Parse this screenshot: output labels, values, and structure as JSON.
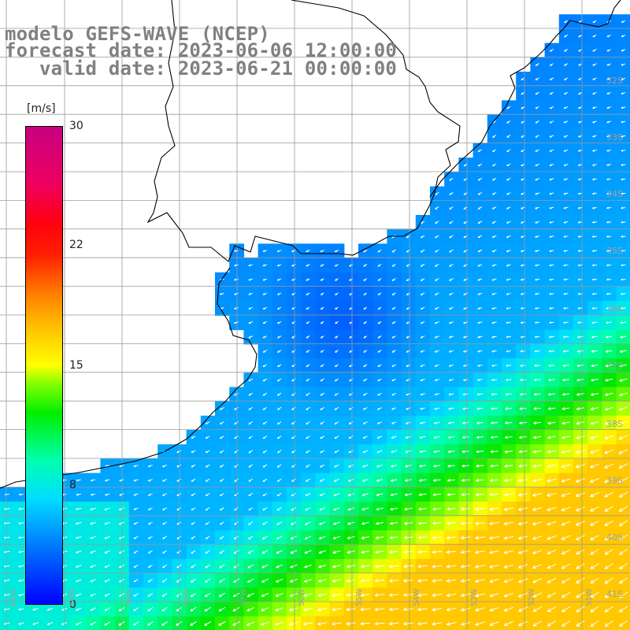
{
  "titles": {
    "line1": "modelo GEFS-WAVE (NCEP)",
    "line2": "forecast date: 2023-06-06 12:00:00",
    "line3": "   valid date: 2023-06-21 00:00:00"
  },
  "colorbar": {
    "unit": "[m/s]",
    "ticks": [
      "30",
      "22",
      "15",
      "8",
      "0"
    ],
    "range": [
      0,
      30
    ]
  },
  "map": {
    "variable": "wind speed with direction arrows",
    "lat_labels": [
      "32S",
      "33S",
      "34S",
      "35S",
      "36S",
      "37S",
      "38S",
      "39S",
      "40S",
      "41S"
    ],
    "lon_labels": [
      "61W",
      "60W",
      "59W",
      "58W",
      "57W",
      "56W",
      "55W",
      "54W",
      "53W",
      "52W",
      "51W"
    ],
    "land_color": "#ffffff",
    "grid_color": "#9a9a9a",
    "coast_color": "#000000",
    "arrow_color": "#ffffff"
  }
}
